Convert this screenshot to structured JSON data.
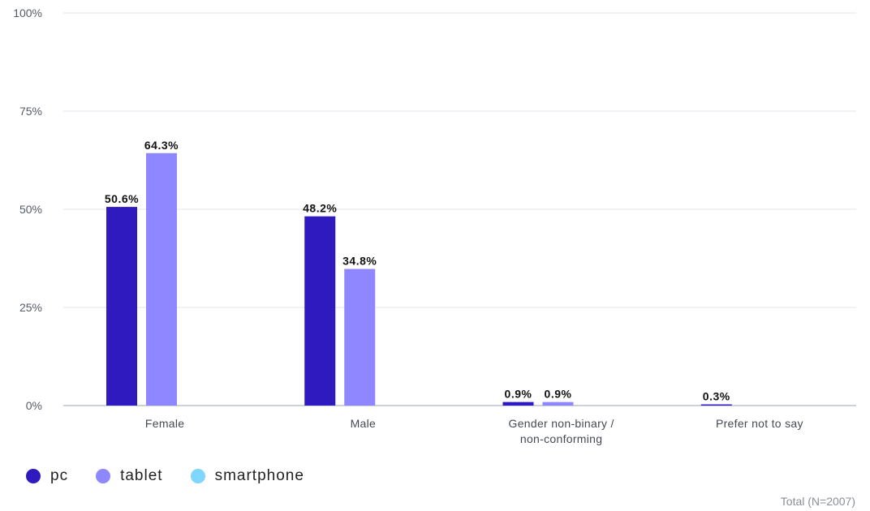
{
  "chart_data": {
    "type": "bar",
    "categories": [
      "Female",
      "Male",
      "Gender non-binary / non-conforming",
      "Prefer not to say"
    ],
    "series": [
      {
        "name": "pc",
        "color": "#2e1abf",
        "values": [
          50.6,
          48.2,
          0.9,
          0.3
        ]
      },
      {
        "name": "tablet",
        "color": "#8f87ff",
        "values": [
          64.3,
          34.8,
          0.9,
          0
        ]
      },
      {
        "name": "smartphone",
        "color": "#7fd6ff",
        "values": [
          0,
          0,
          0,
          0
        ]
      }
    ],
    "data_labels": [
      [
        "50.6%",
        "48.2%",
        "0.9%",
        "0.3%"
      ],
      [
        "64.3%",
        "34.8%",
        "0.9%",
        ""
      ],
      [
        "",
        "",
        "",
        ""
      ]
    ],
    "y_ticks": [
      {
        "value": 0,
        "label": "0%"
      },
      {
        "value": 25,
        "label": "25%"
      },
      {
        "value": 50,
        "label": "50%"
      },
      {
        "value": 75,
        "label": "75%"
      },
      {
        "value": 100,
        "label": "100%"
      }
    ],
    "ylim": [
      0,
      100
    ],
    "grid": true,
    "legend_position": "bottom-left"
  },
  "legend": {
    "items": [
      {
        "label": "pc",
        "color": "#2e1abf"
      },
      {
        "label": "tablet",
        "color": "#8f87ff"
      },
      {
        "label": "smartphone",
        "color": "#7fd6ff"
      }
    ]
  },
  "footnote": "Total (N=2007)"
}
